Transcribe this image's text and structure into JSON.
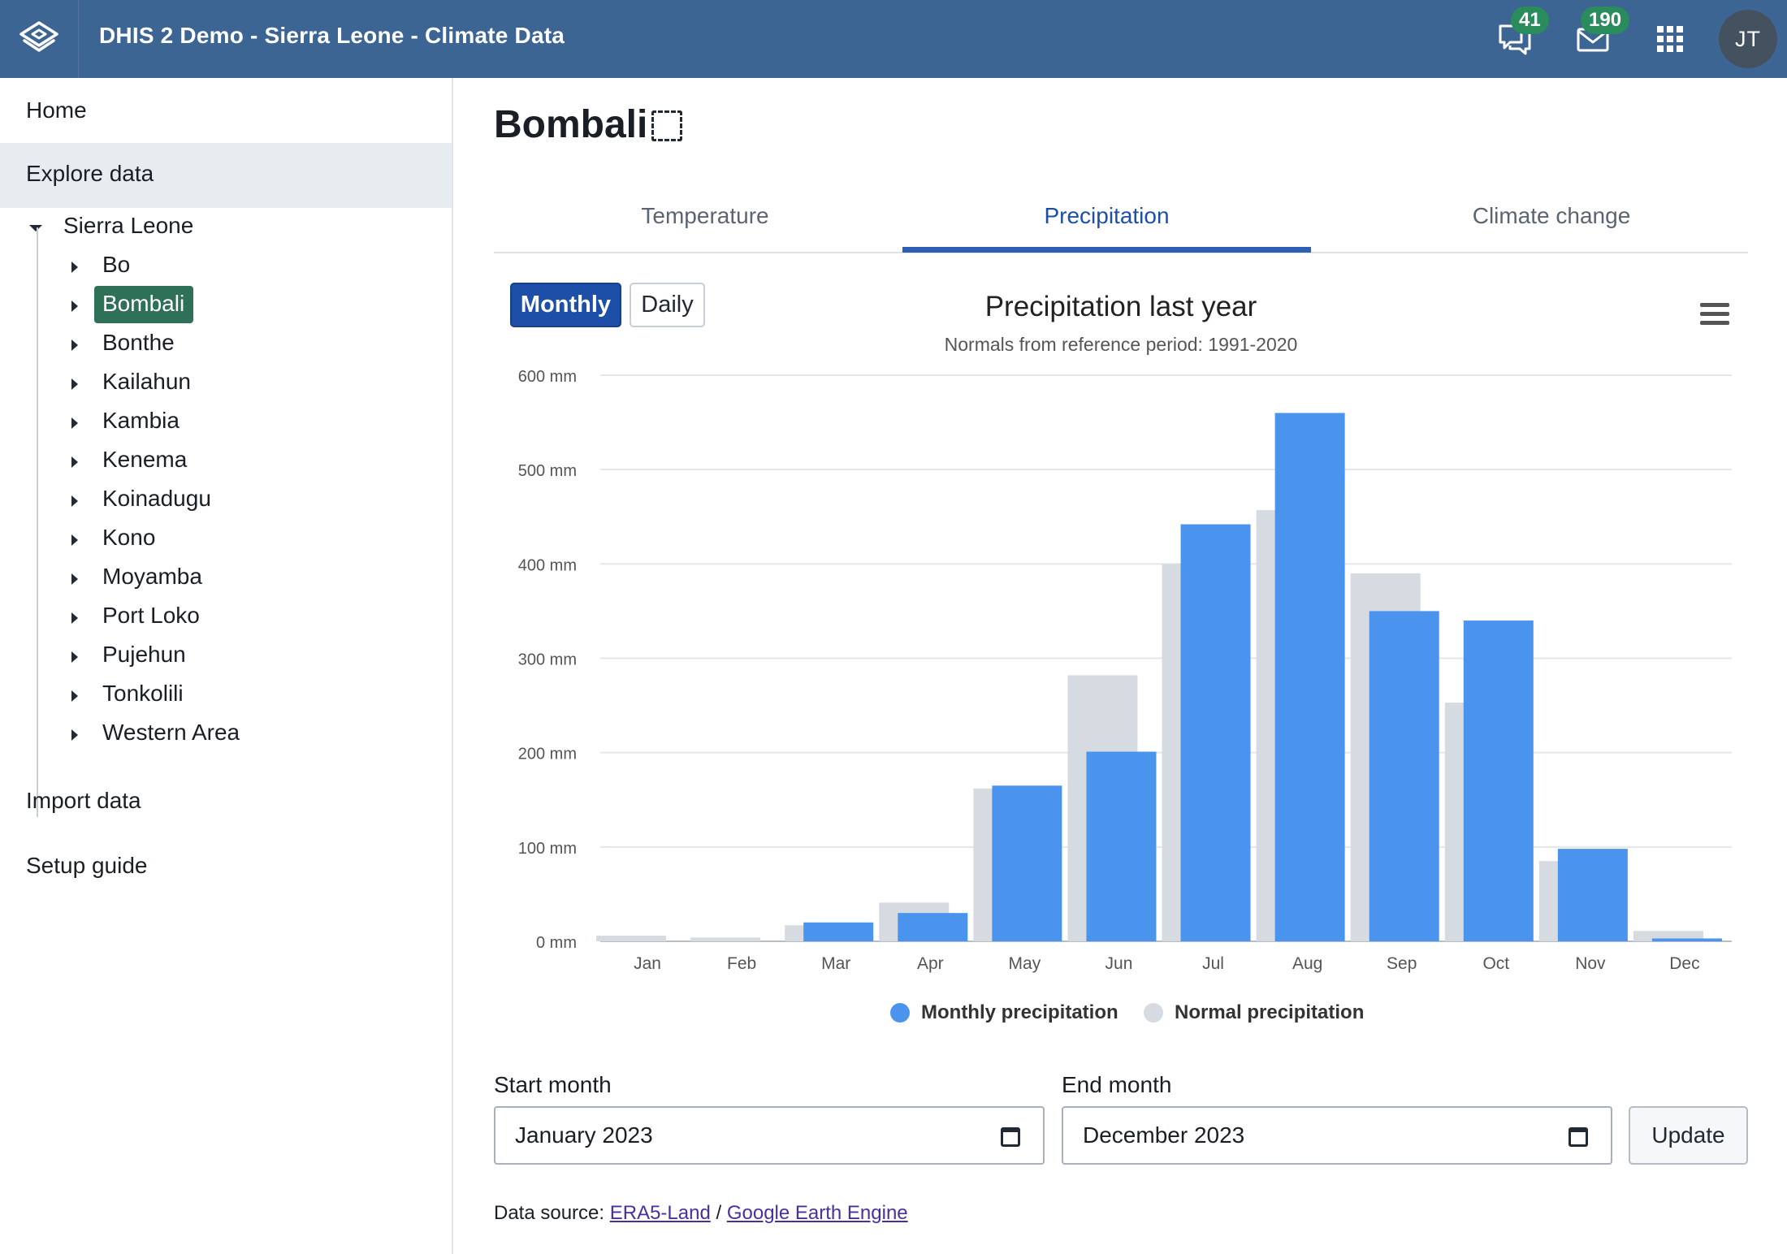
{
  "header": {
    "title": "DHIS 2 Demo - Sierra Leone - Climate Data",
    "interpretations_count": "41",
    "messages_count": "190",
    "avatar_initials": "JT",
    "colors": {
      "bar": "#3c6594",
      "badge": "#2a8b5d"
    }
  },
  "sidebar": {
    "home": "Home",
    "explore": "Explore data",
    "tree_root": "Sierra Leone",
    "districts": [
      "Bo",
      "Bombali",
      "Bonthe",
      "Kailahun",
      "Kambia",
      "Kenema",
      "Koinadugu",
      "Kono",
      "Moyamba",
      "Port Loko",
      "Pujehun",
      "Tonkolili",
      "Western Area"
    ],
    "selected": "Bombali",
    "import": "Import data",
    "setup": "Setup guide"
  },
  "main": {
    "title": "Bombali",
    "tabs": [
      {
        "label": "Temperature",
        "active": false
      },
      {
        "label": "Precipitation",
        "active": true
      },
      {
        "label": "Climate change",
        "active": false
      }
    ],
    "toggle": {
      "monthly": "Monthly",
      "daily": "Daily"
    },
    "start_label": "Start month",
    "start_value": "January  2023",
    "end_label": "End month",
    "end_value": "December  2023",
    "update_label": "Update",
    "datasource_prefix": "Data source: ",
    "datasource_link1": "ERA5-Land",
    "datasource_sep": " / ",
    "datasource_link2": "Google Earth Engine"
  },
  "chart_data": {
    "type": "bar",
    "title": "Precipitation last year",
    "subtitle": "Normals from reference period: 1991-2020",
    "categories": [
      "Jan",
      "Feb",
      "Mar",
      "Apr",
      "May",
      "Jun",
      "Jul",
      "Aug",
      "Sep",
      "Oct",
      "Nov",
      "Dec"
    ],
    "series": [
      {
        "name": "Normal precipitation",
        "color": "#d6dae1",
        "values": [
          6,
          4,
          17,
          41,
          162,
          282,
          400,
          457,
          390,
          253,
          85,
          11
        ]
      },
      {
        "name": "Monthly precipitation",
        "color": "#4a94ee",
        "values": [
          0,
          0,
          20,
          30,
          165,
          201,
          442,
          560,
          350,
          340,
          98,
          3
        ]
      }
    ],
    "ylim": [
      0,
      600
    ],
    "yticks": [
      "0 mm",
      "100 mm",
      "200 mm",
      "300 mm",
      "400 mm",
      "500 mm",
      "600 mm"
    ],
    "ylabel": "",
    "xlabel": "",
    "legend_position": "bottom-center"
  }
}
